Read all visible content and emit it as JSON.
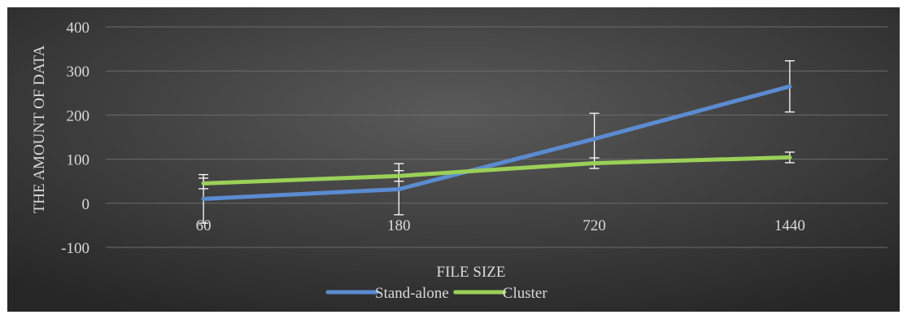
{
  "chart_data": {
    "type": "line",
    "title": "",
    "xlabel": "FILE SIZE",
    "ylabel": "THE AMOUNT OF DATA",
    "categories": [
      "60",
      "180",
      "720",
      "1440"
    ],
    "ylim": [
      -100,
      400
    ],
    "yticks": [
      -100,
      0,
      100,
      200,
      300,
      400
    ],
    "grid": true,
    "legend_position": "bottom",
    "series": [
      {
        "name": "Stand-alone",
        "color": "#5b8bd0",
        "values": [
          10,
          32,
          146,
          265
        ],
        "error": [
          55,
          58,
          58,
          58
        ]
      },
      {
        "name": "Cluster",
        "color": "#9bd058",
        "values": [
          45,
          62,
          91,
          104
        ],
        "error": [
          12,
          12,
          12,
          12
        ]
      }
    ]
  },
  "colors": {
    "background_gradient": [
      "#5a5a5a",
      "#262626"
    ],
    "gridline": "#6b6b6b",
    "text": "#d9d9d9",
    "errorbar": "#ffffff"
  }
}
